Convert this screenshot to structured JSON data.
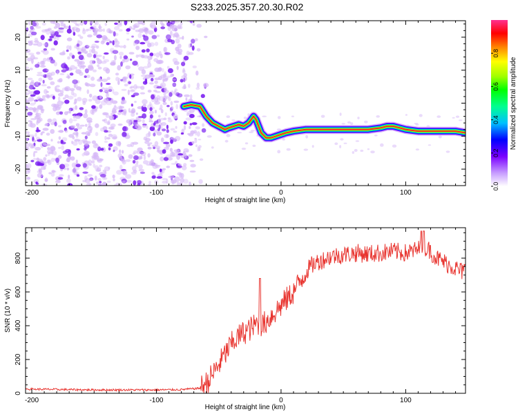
{
  "title": "S233.2025.357.20.30.R02",
  "colors": {
    "snr_line": "#e8342f",
    "track_core": "#e8242a",
    "noise_dark": "#7a1ef0",
    "noise_light": "#d6b8f7"
  },
  "chart_data": [
    {
      "type": "heatmap",
      "xlabel": "Height of straight line (km)",
      "ylabel": "Frequency (Hz)",
      "xlim": [
        -205,
        148
      ],
      "ylim": [
        -25,
        25
      ],
      "xticks": [
        -200,
        -100,
        0,
        100
      ],
      "yticks": [
        -20,
        -10,
        0,
        10,
        20
      ],
      "colorbar": {
        "label": "Normalized spectral amplitude",
        "range": [
          0,
          1
        ],
        "ticks": [
          "0.0",
          "0.2",
          "0.4",
          "0.6",
          "0.8"
        ]
      },
      "noise_region": {
        "x_from": -205,
        "x_to": -65,
        "y_from": -25,
        "y_to": 25
      },
      "track": {
        "x": [
          -78,
          -72,
          -65,
          -60,
          -55,
          -50,
          -45,
          -42,
          -38,
          -34,
          -30,
          -26,
          -22,
          -20,
          -16,
          -12,
          -8,
          -4,
          0,
          4,
          10,
          20,
          40,
          60,
          70,
          80,
          85,
          90,
          95,
          100,
          110,
          120,
          130,
          140,
          148
        ],
        "y": [
          -1,
          -0.5,
          -1,
          -4,
          -6,
          -7,
          -8,
          -7.5,
          -7,
          -6.5,
          -7,
          -6,
          -4,
          -5,
          -9,
          -10.5,
          -10.5,
          -10,
          -9.5,
          -9,
          -8.5,
          -8,
          -8,
          -8,
          -8,
          -7.5,
          -7,
          -7,
          -7.5,
          -8,
          -8.5,
          -8.5,
          -8.5,
          -8.5,
          -9
        ]
      }
    },
    {
      "type": "line",
      "xlabel": "Height of straight line (km)",
      "ylabel": "SNR (10 * v/v)",
      "xlim": [
        -205,
        148
      ],
      "ylim": [
        0,
        980
      ],
      "xticks": [
        -200,
        -100,
        0,
        100
      ],
      "yticks": [
        0,
        200,
        400,
        600,
        800
      ],
      "series": [
        {
          "name": "SNR",
          "x": [
            -205,
            -150,
            -100,
            -80,
            -65,
            -60,
            -55,
            -50,
            -45,
            -40,
            -35,
            -30,
            -25,
            -22,
            -20,
            -17,
            -15,
            -10,
            -5,
            0,
            5,
            10,
            15,
            20,
            25,
            30,
            40,
            50,
            60,
            70,
            80,
            90,
            100,
            110,
            115,
            120,
            125,
            130,
            135,
            140,
            145,
            148
          ],
          "y": [
            25,
            20,
            20,
            22,
            30,
            60,
            110,
            170,
            230,
            290,
            330,
            360,
            380,
            395,
            410,
            420,
            400,
            440,
            480,
            520,
            560,
            600,
            660,
            720,
            760,
            780,
            810,
            820,
            830,
            825,
            830,
            840,
            830,
            850,
            870,
            840,
            800,
            780,
            760,
            740,
            720,
            730
          ]
        }
      ]
    }
  ]
}
